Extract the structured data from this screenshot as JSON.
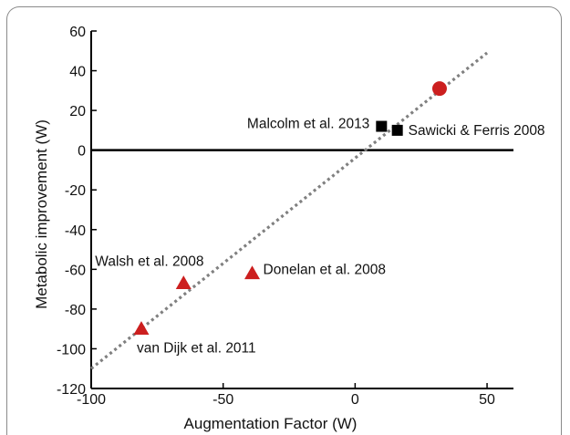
{
  "chart_data": {
    "type": "scatter",
    "xlabel": "Augmentation Factor (W)",
    "ylabel": "Metabolic improvement (W)",
    "xlim": [
      -100,
      60
    ],
    "ylim": [
      -120,
      60
    ],
    "x_ticks": [
      -100,
      -50,
      0,
      50
    ],
    "y_ticks": [
      -120,
      -100,
      -80,
      -60,
      -40,
      -20,
      0,
      20,
      40,
      60
    ],
    "zero_line": true,
    "trend_line": {
      "style": "dotted",
      "color": "#808080",
      "points": [
        [
          -100,
          -110
        ],
        [
          50,
          49
        ]
      ]
    },
    "points": [
      {
        "label": "van Dijk et al. 2011",
        "x": -81,
        "y": -90,
        "marker": "triangle",
        "color": "#cc1f1f"
      },
      {
        "label": "Walsh et al. 2008",
        "x": -65,
        "y": -67,
        "marker": "triangle",
        "color": "#cc1f1f"
      },
      {
        "label": "Donelan et al. 2008",
        "x": -39,
        "y": -62,
        "marker": "triangle",
        "color": "#cc1f1f"
      },
      {
        "label": "Malcolm et al. 2013",
        "x": 10,
        "y": 12,
        "marker": "square",
        "color": "#000000"
      },
      {
        "label": "Sawicki & Ferris 2008",
        "x": 16,
        "y": 10,
        "marker": "square",
        "color": "#000000"
      },
      {
        "label": "",
        "x": 32,
        "y": 31,
        "marker": "circle",
        "color": "#cc1f1f"
      }
    ]
  }
}
